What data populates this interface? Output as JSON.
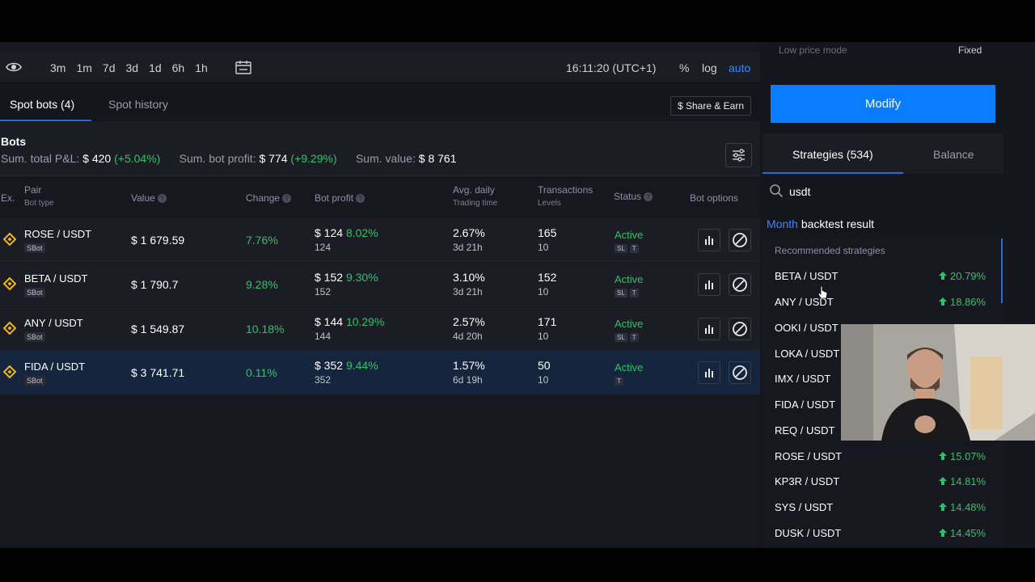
{
  "toolbar": {
    "ranges": [
      "3m",
      "1m",
      "7d",
      "3d",
      "1d",
      "6h",
      "1h"
    ],
    "clock": "16:11:20 (UTC+1)",
    "percent": "%",
    "log": "log",
    "auto": "auto"
  },
  "tabs": {
    "spot_bots": "Spot bots (4)",
    "spot_history": "Spot history",
    "share": "$ Share & Earn"
  },
  "summary": {
    "title": "Bots",
    "pnl_label": "Sum. total P&L:",
    "pnl_value": "$ 420",
    "pnl_pct": "(+5.04%)",
    "profit_label": "Sum. bot profit:",
    "profit_value": "$ 774",
    "profit_pct": "(+9.29%)",
    "value_label": "Sum. value:",
    "value_value": "$ 8 761"
  },
  "table": {
    "headers": {
      "ex": "Ex.",
      "pair": "Pair",
      "pair_sub": "Bot type",
      "value": "Value",
      "change": "Change",
      "bot_profit": "Bot profit",
      "avg_daily": "Avg. daily",
      "avg_daily_sub": "Trading time",
      "transactions": "Transactions",
      "transactions_sub": "Levels",
      "status": "Status",
      "options": "Bot options",
      "help": "?"
    },
    "rows": [
      {
        "pair": "ROSE / USDT",
        "type": "SBot",
        "value": "$ 1 679.59",
        "change": "7.76%",
        "profit": "$ 124",
        "profit_pct": "8.02%",
        "profit_sub": "124",
        "avg": "2.67%",
        "time": "3d 21h",
        "tx": "165",
        "levels": "10",
        "status": "Active",
        "tag1": "SL",
        "tag2": "T"
      },
      {
        "pair": "BETA / USDT",
        "type": "SBot",
        "value": "$ 1 790.7",
        "change": "9.28%",
        "profit": "$ 152",
        "profit_pct": "9.30%",
        "profit_sub": "152",
        "avg": "3.10%",
        "time": "3d 21h",
        "tx": "152",
        "levels": "10",
        "status": "Active",
        "tag1": "SL",
        "tag2": "T"
      },
      {
        "pair": "ANY / USDT",
        "type": "SBot",
        "value": "$ 1 549.87",
        "change": "10.18%",
        "profit": "$ 144",
        "profit_pct": "10.29%",
        "profit_sub": "144",
        "avg": "2.57%",
        "time": "4d 20h",
        "tx": "171",
        "levels": "10",
        "status": "Active",
        "tag1": "SL",
        "tag2": "T"
      },
      {
        "pair": "FIDA / USDT",
        "type": "SBot",
        "value": "$ 3 741.71",
        "change": "0.11%",
        "profit": "$ 352",
        "profit_pct": "9.44%",
        "profit_sub": "352",
        "avg": "1.57%",
        "time": "6d 19h",
        "tx": "50",
        "levels": "10",
        "status": "Active",
        "tag1": "T"
      }
    ]
  },
  "right": {
    "low_price_mode": "Low price mode",
    "fixed": "Fixed",
    "modify": "Modify",
    "strategies_tab": "Strategies (534)",
    "balance_tab": "Balance",
    "search_value": "usdt",
    "backtest_month": "Month",
    "backtest_rest": "backtest result",
    "recommended": "Recommended strategies",
    "strategies": [
      {
        "name": "BETA / USDT",
        "pct": "20.79%"
      },
      {
        "name": "ANY / USDT",
        "pct": "18.86%"
      },
      {
        "name": "OOKI / USDT",
        "pct": ""
      },
      {
        "name": "LOKA / USDT",
        "pct": ""
      },
      {
        "name": "IMX / USDT",
        "pct": ""
      },
      {
        "name": "FIDA / USDT",
        "pct": ""
      },
      {
        "name": "REQ / USDT",
        "pct": ""
      },
      {
        "name": "ROSE / USDT",
        "pct": "15.07%"
      },
      {
        "name": "KP3R / USDT",
        "pct": "14.81%"
      },
      {
        "name": "SYS / USDT",
        "pct": "14.48%"
      },
      {
        "name": "DUSK / USDT",
        "pct": "14.45%"
      }
    ]
  },
  "colors": {
    "accent_blue": "#0a7cff",
    "positive_green": "#2ec16b",
    "selected_row": "#14253d",
    "binance_gold": "#f0b90b"
  }
}
